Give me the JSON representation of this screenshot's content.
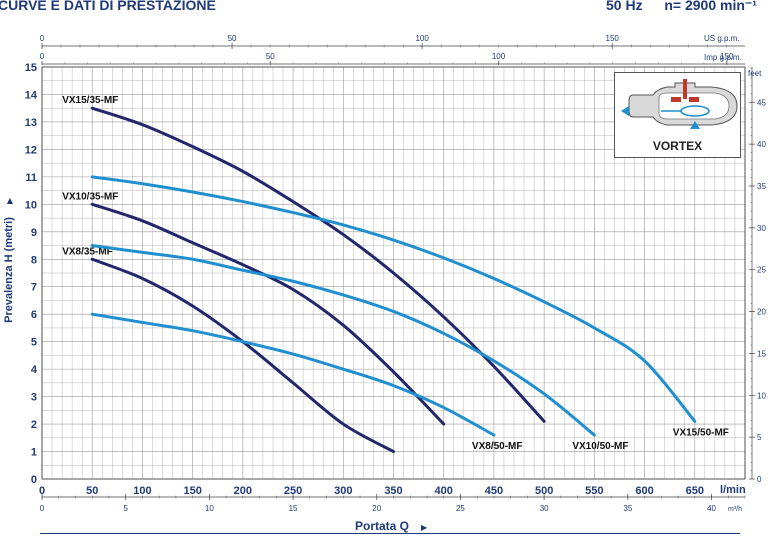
{
  "header": {
    "title": "CURVE E DATI DI PRESTAZIONE",
    "frequency": "50 Hz",
    "speed": "n= 2900 min⁻¹"
  },
  "colors": {
    "navy": "#22276b",
    "blue": "#1f8fcf",
    "grid": "#9a9a9a",
    "text": "#1f3a78"
  },
  "inset": {
    "label": "VORTEX",
    "icon": "vortex-pump-icon"
  },
  "chart_data": {
    "type": "line",
    "ylabel": "Prevalenza H  (metri)",
    "xlabel": "Portata Q",
    "y_unit_right": "feet",
    "x_unit_top1": "US g.p.m.",
    "x_unit_top2": "Imp g.p.m.",
    "x_unit_bottom": "l/min",
    "x_unit_bottom2": "m³/h",
    "xlim": [
      0,
      700
    ],
    "ylim": [
      0,
      15
    ],
    "grid": true,
    "x_ticks": [
      0,
      50,
      100,
      150,
      200,
      250,
      300,
      350,
      400,
      450,
      500,
      550,
      600,
      650
    ],
    "y_ticks": [
      0,
      1,
      2,
      3,
      4,
      5,
      6,
      7,
      8,
      9,
      10,
      11,
      12,
      13,
      14,
      15
    ],
    "m3h_ticks": [
      0,
      5,
      10,
      15,
      20,
      25,
      30,
      35,
      40
    ],
    "us_gpm_ticks": [
      0,
      50,
      100,
      150
    ],
    "imp_gpm_ticks": [
      0,
      50,
      100,
      150
    ],
    "feet_ticks": [
      0,
      5,
      10,
      15,
      20,
      25,
      30,
      35,
      40,
      45
    ],
    "series": [
      {
        "name": "VX8/35-MF",
        "color": "#22276b",
        "label_pos": "start",
        "x": [
          50,
          100,
          150,
          200,
          250,
          300,
          350
        ],
        "y": [
          8.0,
          7.3,
          6.3,
          5.0,
          3.5,
          2.0,
          1.0
        ]
      },
      {
        "name": "VX10/35-MF",
        "color": "#22276b",
        "label_pos": "start",
        "x": [
          50,
          100,
          150,
          200,
          250,
          300,
          350,
          400
        ],
        "y": [
          10.0,
          9.4,
          8.6,
          7.8,
          6.9,
          5.6,
          3.9,
          2.0
        ]
      },
      {
        "name": "VX15/35-MF",
        "color": "#22276b",
        "label_pos": "start",
        "x": [
          50,
          100,
          150,
          200,
          250,
          300,
          350,
          400,
          450,
          500
        ],
        "y": [
          13.5,
          12.9,
          12.1,
          11.2,
          10.1,
          8.9,
          7.5,
          5.9,
          4.1,
          2.1
        ]
      },
      {
        "name": "VX8/50-MF",
        "color": "#1f8fcf",
        "label_pos": "end",
        "x": [
          50,
          100,
          150,
          200,
          250,
          300,
          350,
          400,
          450
        ],
        "y": [
          6.0,
          5.7,
          5.4,
          5.0,
          4.55,
          4.0,
          3.4,
          2.6,
          1.6
        ]
      },
      {
        "name": "VX10/50-MF",
        "color": "#1f8fcf",
        "label_pos": "end",
        "x": [
          50,
          100,
          150,
          200,
          250,
          300,
          350,
          400,
          450,
          500,
          550
        ],
        "y": [
          8.5,
          8.25,
          8.0,
          7.6,
          7.2,
          6.7,
          6.1,
          5.3,
          4.3,
          3.1,
          1.6
        ]
      },
      {
        "name": "VX15/50-MF",
        "color": "#1f8fcf",
        "label_pos": "end",
        "x": [
          50,
          100,
          150,
          200,
          250,
          300,
          350,
          400,
          450,
          500,
          550,
          600,
          650
        ],
        "y": [
          11.0,
          10.75,
          10.45,
          10.1,
          9.7,
          9.25,
          8.7,
          8.05,
          7.3,
          6.45,
          5.5,
          4.3,
          2.1
        ]
      }
    ]
  }
}
